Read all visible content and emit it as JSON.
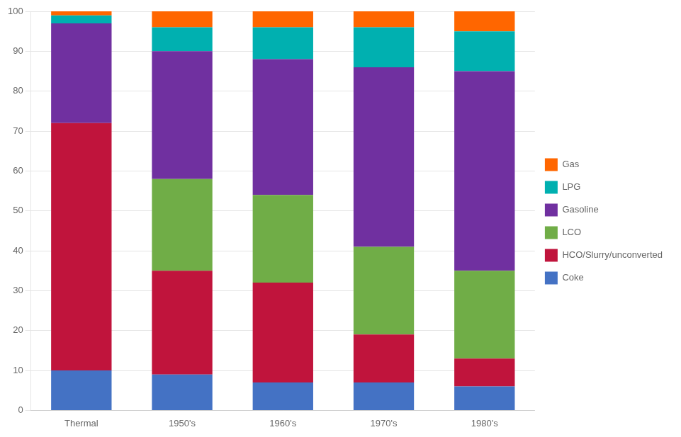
{
  "chart_data": {
    "type": "bar",
    "stacked": true,
    "categories": [
      "Thermal",
      "1950's",
      "1960's",
      "1970's",
      "1980's"
    ],
    "series": [
      {
        "name": "Coke",
        "color": "#4472C4",
        "values": [
          10,
          9,
          7,
          7,
          6
        ]
      },
      {
        "name": "HCO/Slurry/unconverted",
        "color": "#C0143C",
        "values": [
          62,
          26,
          25,
          12,
          7
        ]
      },
      {
        "name": "LCO",
        "color": "#70AD47",
        "values": [
          0,
          23,
          22,
          22,
          22
        ]
      },
      {
        "name": "Gasoline",
        "color": "#7030A0",
        "values": [
          25,
          32,
          34,
          45,
          50
        ]
      },
      {
        "name": "LPG",
        "color": "#00B0B0",
        "values": [
          2,
          6,
          8,
          10,
          10
        ]
      },
      {
        "name": "Gas",
        "color": "#FF6600",
        "values": [
          1,
          4,
          4,
          4,
          5
        ]
      }
    ],
    "ylim": [
      0,
      100
    ],
    "yticks": [
      0,
      10,
      20,
      30,
      40,
      50,
      60,
      70,
      80,
      90,
      100
    ],
    "grid": true,
    "legend": "right"
  }
}
